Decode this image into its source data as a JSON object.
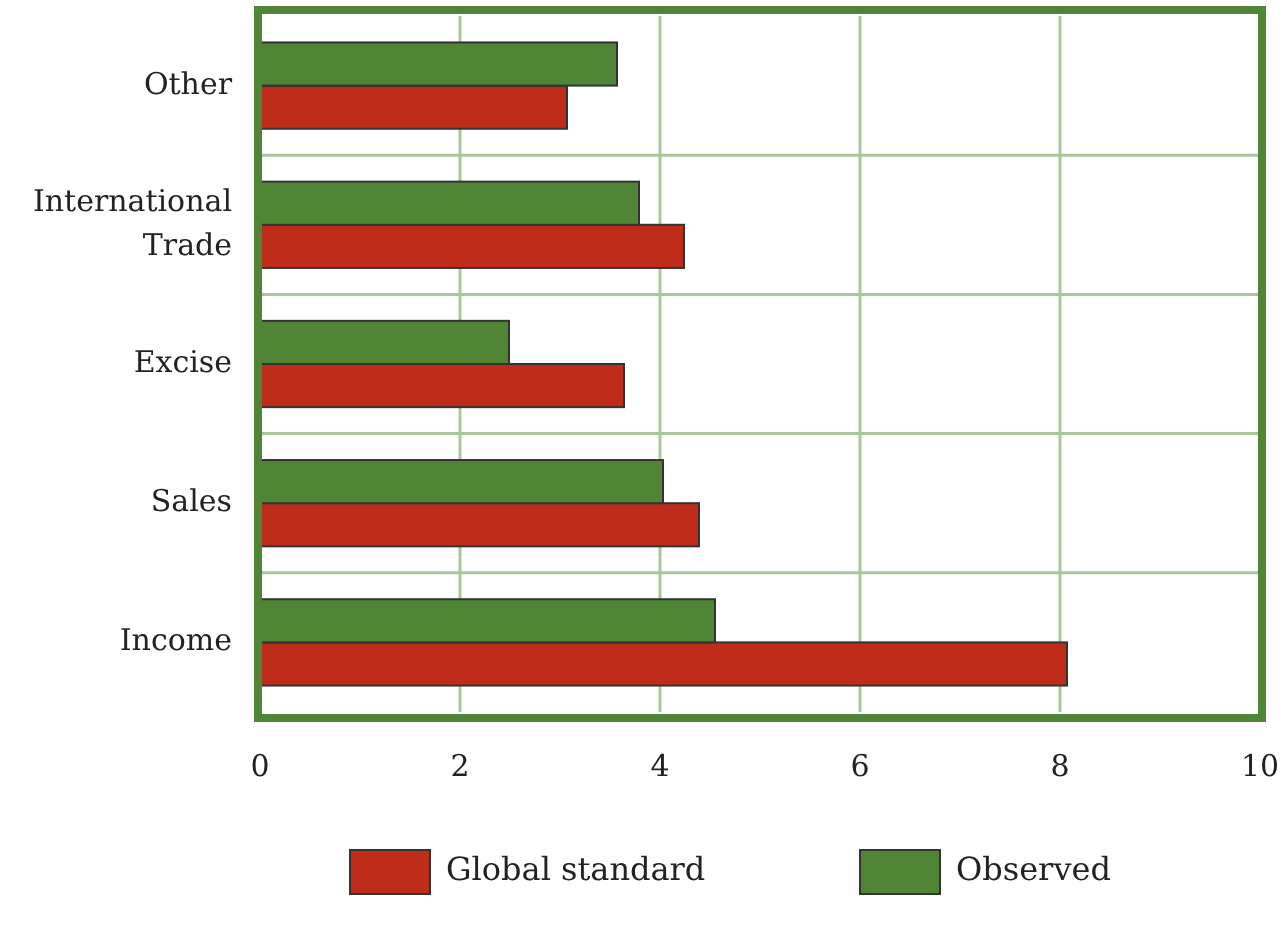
{
  "chart_data": {
    "type": "bar",
    "orientation": "horizontal",
    "categories": [
      "Other",
      "International Trade",
      "Excise",
      "Sales",
      "Income"
    ],
    "series": [
      {
        "name": "Global standard",
        "color": "#c02c1a",
        "values": [
          3.07,
          4.24,
          3.64,
          4.39,
          8.07
        ]
      },
      {
        "name": "Observed",
        "color": "#4f8535",
        "values": [
          3.57,
          3.79,
          2.49,
          4.03,
          4.55
        ]
      }
    ],
    "xlim": [
      0,
      10
    ],
    "xticks": [
      0,
      2,
      4,
      6,
      8,
      10
    ],
    "grid": true,
    "legend": "bottom"
  }
}
